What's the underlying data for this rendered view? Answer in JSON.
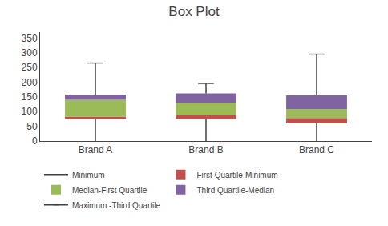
{
  "chart_data": {
    "type": "bar",
    "title": "Box Plot",
    "categories": [
      "Brand A",
      "Brand B",
      "Brand C"
    ],
    "stacked": true,
    "series": [
      {
        "name": "Minimum",
        "type": "whisker",
        "color": "#404040",
        "values": [
          75,
          75,
          60
        ]
      },
      {
        "name": "First Quartile-Minimum",
        "type": "bar",
        "color": "#C0504D",
        "values": [
          8,
          12,
          18
        ]
      },
      {
        "name": "Median-First Quartile",
        "type": "bar",
        "color": "#9BBB59",
        "values": [
          57,
          43,
          30
        ]
      },
      {
        "name": "Third Quartile-Median",
        "type": "bar",
        "color": "#8064A2",
        "values": [
          18,
          32,
          47
        ]
      },
      {
        "name": "Maximum -Third Quartile",
        "type": "whisker",
        "marker": "cap",
        "color": "#404040",
        "values": [
          107,
          33,
          140
        ]
      }
    ],
    "ylim": [
      0,
      370
    ],
    "yticks": [
      0,
      50,
      100,
      150,
      200,
      250,
      300,
      350
    ],
    "grid": false,
    "legend": "bottom"
  }
}
